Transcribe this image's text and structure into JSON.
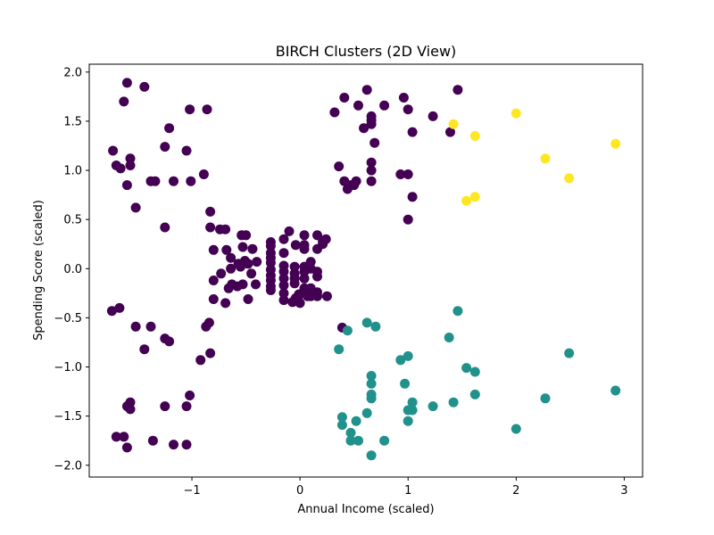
{
  "chart_data": {
    "type": "scatter",
    "title": "BIRCH Clusters (2D View)",
    "xlabel": "Annual Income (scaled)",
    "ylabel": "Spending Score (scaled)",
    "xlim": [
      -1.95,
      3.17
    ],
    "ylim": [
      -2.12,
      2.08
    ],
    "xticks": [
      -1,
      0,
      1,
      2,
      3
    ],
    "xtick_labels": [
      "−1",
      "0",
      "1",
      "2",
      "3"
    ],
    "yticks": [
      -2.0,
      -1.5,
      -1.0,
      -0.5,
      0.0,
      0.5,
      1.0,
      1.5,
      2.0
    ],
    "ytick_labels": [
      "−2.0",
      "−1.5",
      "−1.0",
      "−0.5",
      "0.0",
      "0.5",
      "1.0",
      "1.5",
      "2.0"
    ],
    "grid": false,
    "series": [
      {
        "color": "#440154",
        "points": [
          [
            -1.6,
            1.89
          ],
          [
            -1.44,
            1.85
          ],
          [
            -1.63,
            1.7
          ],
          [
            -1.02,
            1.62
          ],
          [
            -0.86,
            1.62
          ],
          [
            -1.21,
            1.43
          ],
          [
            -1.73,
            1.2
          ],
          [
            -1.57,
            1.12
          ],
          [
            -1.25,
            1.24
          ],
          [
            -1.05,
            1.2
          ],
          [
            -1.7,
            1.05
          ],
          [
            -1.66,
            1.02
          ],
          [
            -1.57,
            1.05
          ],
          [
            -1.38,
            0.89
          ],
          [
            -1.34,
            0.89
          ],
          [
            -1.17,
            0.89
          ],
          [
            -1.01,
            0.89
          ],
          [
            -0.89,
            0.96
          ],
          [
            -1.6,
            0.85
          ],
          [
            -1.52,
            0.62
          ],
          [
            -1.25,
            0.42
          ],
          [
            -0.83,
            0.58
          ],
          [
            -0.83,
            0.42
          ],
          [
            -0.69,
            0.4
          ],
          [
            -0.74,
            0.4
          ],
          [
            -0.8,
            0.19
          ],
          [
            -0.68,
            0.19
          ],
          [
            -0.64,
            0.11
          ],
          [
            -0.54,
            0.34
          ],
          [
            -0.5,
            0.34
          ],
          [
            -0.44,
            0.2
          ],
          [
            -0.53,
            0.22
          ],
          [
            -0.51,
            0.08
          ],
          [
            -0.4,
            0.07
          ],
          [
            -0.48,
            0.05
          ],
          [
            -0.57,
            0.05
          ],
          [
            -0.73,
            -0.05
          ],
          [
            -0.64,
            0.0
          ],
          [
            -0.55,
            0.02
          ],
          [
            -0.45,
            -0.05
          ],
          [
            -0.8,
            -0.12
          ],
          [
            -0.63,
            -0.16
          ],
          [
            -0.58,
            -0.18
          ],
          [
            -0.53,
            -0.16
          ],
          [
            -0.41,
            -0.16
          ],
          [
            -0.66,
            -0.2
          ],
          [
            -0.8,
            -0.31
          ],
          [
            -0.69,
            -0.35
          ],
          [
            -0.48,
            -0.31
          ],
          [
            -0.27,
            0.27
          ],
          [
            -0.27,
            0.23
          ],
          [
            -0.27,
            0.16
          ],
          [
            -0.27,
            0.11
          ],
          [
            -0.27,
            0.06
          ],
          [
            -0.27,
            -0.01
          ],
          [
            -0.27,
            -0.07
          ],
          [
            -0.27,
            -0.12
          ],
          [
            -0.27,
            -0.18
          ],
          [
            -0.27,
            -0.22
          ],
          [
            -0.15,
            0.3
          ],
          [
            -0.1,
            0.38
          ],
          [
            -0.15,
            0.16
          ],
          [
            -0.15,
            0.03
          ],
          [
            -0.15,
            -0.03
          ],
          [
            -0.15,
            -0.1
          ],
          [
            -0.15,
            -0.17
          ],
          [
            -0.15,
            -0.25
          ],
          [
            -0.15,
            -0.32
          ],
          [
            -0.04,
            0.24
          ],
          [
            -0.05,
            0.02
          ],
          [
            -0.05,
            -0.05
          ],
          [
            -0.05,
            -0.1
          ],
          [
            -0.05,
            -0.15
          ],
          [
            -0.07,
            -0.34
          ],
          [
            -0.02,
            -0.3
          ],
          [
            0.04,
            0.34
          ],
          [
            0.04,
            0.2
          ],
          [
            0.04,
            0.24
          ],
          [
            0.04,
            0.02
          ],
          [
            0.04,
            -0.03
          ],
          [
            0.04,
            -0.1
          ],
          [
            0.04,
            -0.2
          ],
          [
            0.0,
            -0.35
          ],
          [
            -0.04,
            -0.3
          ],
          [
            0.1,
            0.07
          ],
          [
            0.1,
            0.0
          ],
          [
            0.1,
            -0.2
          ],
          [
            0.1,
            -0.28
          ],
          [
            0.16,
            0.34
          ],
          [
            0.16,
            0.2
          ],
          [
            0.16,
            -0.03
          ],
          [
            0.16,
            -0.08
          ],
          [
            0.16,
            -0.24
          ],
          [
            0.16,
            -0.28
          ],
          [
            0.21,
            0.25
          ],
          [
            0.21,
            0.28
          ],
          [
            0.24,
            0.3
          ],
          [
            0.25,
            -0.28
          ],
          [
            0.39,
            -0.6
          ],
          [
            0.07,
            -0.28
          ],
          [
            -0.01,
            -0.26
          ],
          [
            -1.74,
            -0.43
          ],
          [
            -1.67,
            -0.4
          ],
          [
            -1.52,
            -0.59
          ],
          [
            -1.38,
            -0.59
          ],
          [
            -1.44,
            -0.82
          ],
          [
            -1.25,
            -0.71
          ],
          [
            -1.21,
            -0.74
          ],
          [
            -0.87,
            -0.59
          ],
          [
            -0.84,
            -0.55
          ],
          [
            -0.92,
            -0.93
          ],
          [
            -0.83,
            -0.86
          ],
          [
            -1.57,
            -1.36
          ],
          [
            -1.6,
            -1.4
          ],
          [
            -1.57,
            -1.43
          ],
          [
            -1.25,
            -1.4
          ],
          [
            -1.05,
            -1.4
          ],
          [
            -1.02,
            -1.29
          ],
          [
            -1.7,
            -1.71
          ],
          [
            -1.63,
            -1.71
          ],
          [
            -1.36,
            -1.75
          ],
          [
            -1.17,
            -1.79
          ],
          [
            -1.05,
            -1.79
          ],
          [
            -1.6,
            -1.82
          ],
          [
            0.41,
            1.74
          ],
          [
            0.62,
            1.82
          ],
          [
            0.96,
            1.74
          ],
          [
            1.46,
            1.82
          ],
          [
            0.32,
            1.59
          ],
          [
            0.54,
            1.66
          ],
          [
            0.66,
            1.55
          ],
          [
            0.66,
            1.51
          ],
          [
            0.66,
            1.47
          ],
          [
            0.78,
            1.66
          ],
          [
            1.0,
            1.62
          ],
          [
            1.23,
            1.55
          ],
          [
            0.59,
            1.43
          ],
          [
            1.04,
            1.39
          ],
          [
            1.39,
            1.39
          ],
          [
            0.69,
            1.28
          ],
          [
            0.36,
            1.04
          ],
          [
            0.66,
            1.08
          ],
          [
            0.41,
            0.89
          ],
          [
            0.47,
            0.85
          ],
          [
            0.52,
            0.89
          ],
          [
            0.66,
            0.89
          ],
          [
            0.44,
            0.81
          ],
          [
            0.5,
            0.85
          ],
          [
            0.66,
            1.0
          ],
          [
            0.93,
            0.96
          ],
          [
            1.0,
            0.96
          ],
          [
            1.04,
            0.73
          ],
          [
            1.0,
            0.5
          ]
        ]
      },
      {
        "color": "#21918c",
        "points": [
          [
            0.44,
            -0.63
          ],
          [
            0.62,
            -0.55
          ],
          [
            0.7,
            -0.59
          ],
          [
            0.36,
            -0.82
          ],
          [
            1.46,
            -0.43
          ],
          [
            1.38,
            -0.7
          ],
          [
            0.93,
            -0.93
          ],
          [
            1.0,
            -0.89
          ],
          [
            0.66,
            -1.09
          ],
          [
            0.66,
            -1.17
          ],
          [
            0.97,
            -1.17
          ],
          [
            1.54,
            -1.01
          ],
          [
            1.62,
            -1.05
          ],
          [
            2.49,
            -0.86
          ],
          [
            0.66,
            -1.28
          ],
          [
            0.66,
            -1.32
          ],
          [
            1.04,
            -1.36
          ],
          [
            1.0,
            -1.44
          ],
          [
            1.04,
            -1.44
          ],
          [
            0.39,
            -1.51
          ],
          [
            0.39,
            -1.59
          ],
          [
            0.52,
            -1.55
          ],
          [
            0.62,
            -1.47
          ],
          [
            1.0,
            -1.55
          ],
          [
            1.23,
            -1.4
          ],
          [
            1.42,
            -1.36
          ],
          [
            1.62,
            -1.28
          ],
          [
            2.27,
            -1.32
          ],
          [
            2.92,
            -1.24
          ],
          [
            0.47,
            -1.67
          ],
          [
            0.47,
            -1.75
          ],
          [
            0.54,
            -1.75
          ],
          [
            0.78,
            -1.75
          ],
          [
            0.66,
            -1.9
          ],
          [
            2.0,
            -1.63
          ]
        ]
      },
      {
        "color": "#fde725",
        "points": [
          [
            1.42,
            1.47
          ],
          [
            1.62,
            1.35
          ],
          [
            2.0,
            1.58
          ],
          [
            2.27,
            1.12
          ],
          [
            2.92,
            1.27
          ],
          [
            1.54,
            0.69
          ],
          [
            1.62,
            0.73
          ],
          [
            2.49,
            0.92
          ]
        ]
      }
    ]
  }
}
